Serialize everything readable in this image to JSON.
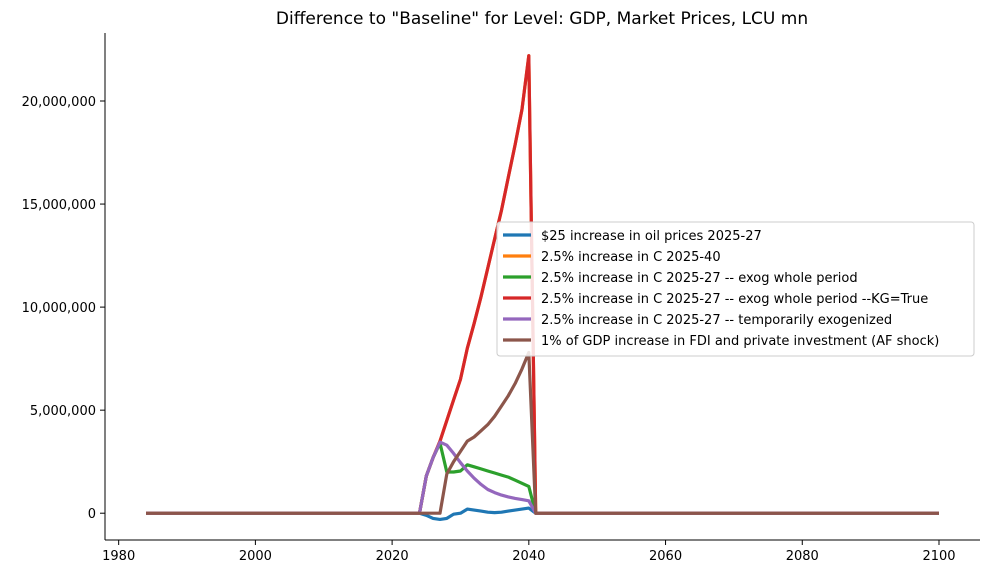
{
  "chart_data": {
    "type": "line",
    "title": "Difference to \"Baseline\" for Level: GDP, Market Prices, LCU mn",
    "xlabel": "",
    "ylabel": "",
    "xlim": [
      1984,
      2100
    ],
    "ylim": [
      -1300000,
      23300000
    ],
    "x_ticks": [
      1980,
      2000,
      2020,
      2040,
      2060,
      2080,
      2100
    ],
    "y_ticks": [
      0,
      5000000,
      10000000,
      15000000,
      20000000
    ],
    "y_tick_labels": [
      "0",
      "5,000,000",
      "10,000,000",
      "15,000,000",
      "20,000,000"
    ],
    "grid": false,
    "legend_position": "center-right",
    "series": [
      {
        "name": "$25 increase in oil prices 2025-27",
        "color": "#1f77b4",
        "points": [
          [
            1984,
            0
          ],
          [
            2024,
            0
          ],
          [
            2025,
            -100000
          ],
          [
            2026,
            -250000
          ],
          [
            2027,
            -300000
          ],
          [
            2028,
            -250000
          ],
          [
            2029,
            -50000
          ],
          [
            2030,
            0
          ],
          [
            2031,
            200000
          ],
          [
            2032,
            150000
          ],
          [
            2033,
            100000
          ],
          [
            2034,
            50000
          ],
          [
            2035,
            30000
          ],
          [
            2036,
            50000
          ],
          [
            2037,
            100000
          ],
          [
            2038,
            150000
          ],
          [
            2039,
            200000
          ],
          [
            2040,
            250000
          ],
          [
            2041,
            0
          ],
          [
            2100,
            0
          ]
        ]
      },
      {
        "name": "2.5% increase in C 2025-40",
        "color": "#ff7f0e",
        "points": [
          [
            1984,
            0
          ],
          [
            2024,
            0
          ],
          [
            2025,
            1800000
          ],
          [
            2026,
            2700000
          ],
          [
            2027,
            3500000
          ],
          [
            2028,
            4500000
          ],
          [
            2029,
            5500000
          ],
          [
            2030,
            6500000
          ],
          [
            2031,
            8000000
          ],
          [
            2032,
            9200000
          ],
          [
            2033,
            10500000
          ],
          [
            2034,
            11900000
          ],
          [
            2035,
            13300000
          ],
          [
            2036,
            14700000
          ],
          [
            2037,
            16300000
          ],
          [
            2038,
            17900000
          ],
          [
            2039,
            19600000
          ],
          [
            2040,
            22200000
          ],
          [
            2041,
            0
          ],
          [
            2100,
            0
          ]
        ]
      },
      {
        "name": "2.5% increase in C 2025-27 -- exog whole period",
        "color": "#2ca02c",
        "points": [
          [
            1984,
            0
          ],
          [
            2024,
            0
          ],
          [
            2025,
            1800000
          ],
          [
            2026,
            2700000
          ],
          [
            2027,
            3400000
          ],
          [
            2028,
            2000000
          ],
          [
            2029,
            2000000
          ],
          [
            2030,
            2050000
          ],
          [
            2031,
            2350000
          ],
          [
            2032,
            2250000
          ],
          [
            2033,
            2150000
          ],
          [
            2034,
            2050000
          ],
          [
            2035,
            1950000
          ],
          [
            2036,
            1850000
          ],
          [
            2037,
            1750000
          ],
          [
            2038,
            1600000
          ],
          [
            2039,
            1450000
          ],
          [
            2040,
            1300000
          ],
          [
            2041,
            0
          ],
          [
            2100,
            0
          ]
        ]
      },
      {
        "name": "2.5% increase in C 2025-27 -- exog whole period --KG=True",
        "color": "#d62728",
        "points": [
          [
            1984,
            0
          ],
          [
            2024,
            0
          ],
          [
            2025,
            1800000
          ],
          [
            2026,
            2700000
          ],
          [
            2027,
            3500000
          ],
          [
            2028,
            4500000
          ],
          [
            2029,
            5500000
          ],
          [
            2030,
            6500000
          ],
          [
            2031,
            8000000
          ],
          [
            2032,
            9200000
          ],
          [
            2033,
            10500000
          ],
          [
            2034,
            11900000
          ],
          [
            2035,
            13300000
          ],
          [
            2036,
            14700000
          ],
          [
            2037,
            16300000
          ],
          [
            2038,
            17900000
          ],
          [
            2039,
            19600000
          ],
          [
            2040,
            22200000
          ],
          [
            2041,
            0
          ],
          [
            2100,
            0
          ]
        ]
      },
      {
        "name": "2.5% increase in C 2025-27 -- temporarily exogenized",
        "color": "#9467bd",
        "points": [
          [
            1984,
            0
          ],
          [
            2024,
            0
          ],
          [
            2025,
            1800000
          ],
          [
            2026,
            2700000
          ],
          [
            2027,
            3450000
          ],
          [
            2028,
            3300000
          ],
          [
            2029,
            2900000
          ],
          [
            2030,
            2450000
          ],
          [
            2031,
            2050000
          ],
          [
            2032,
            1700000
          ],
          [
            2033,
            1400000
          ],
          [
            2034,
            1150000
          ],
          [
            2035,
            1000000
          ],
          [
            2036,
            880000
          ],
          [
            2037,
            790000
          ],
          [
            2038,
            720000
          ],
          [
            2039,
            660000
          ],
          [
            2040,
            600000
          ],
          [
            2041,
            0
          ],
          [
            2100,
            0
          ]
        ]
      },
      {
        "name": "1% of GDP increase in FDI and private investment (AF shock)",
        "color": "#8c564b",
        "points": [
          [
            1984,
            0
          ],
          [
            2026,
            0
          ],
          [
            2027,
            0
          ],
          [
            2028,
            1900000
          ],
          [
            2029,
            2500000
          ],
          [
            2030,
            3000000
          ],
          [
            2031,
            3500000
          ],
          [
            2032,
            3700000
          ],
          [
            2033,
            4000000
          ],
          [
            2034,
            4300000
          ],
          [
            2035,
            4700000
          ],
          [
            2036,
            5200000
          ],
          [
            2037,
            5700000
          ],
          [
            2038,
            6300000
          ],
          [
            2039,
            7000000
          ],
          [
            2040,
            7800000
          ],
          [
            2041,
            0
          ],
          [
            2100,
            0
          ]
        ]
      }
    ]
  }
}
